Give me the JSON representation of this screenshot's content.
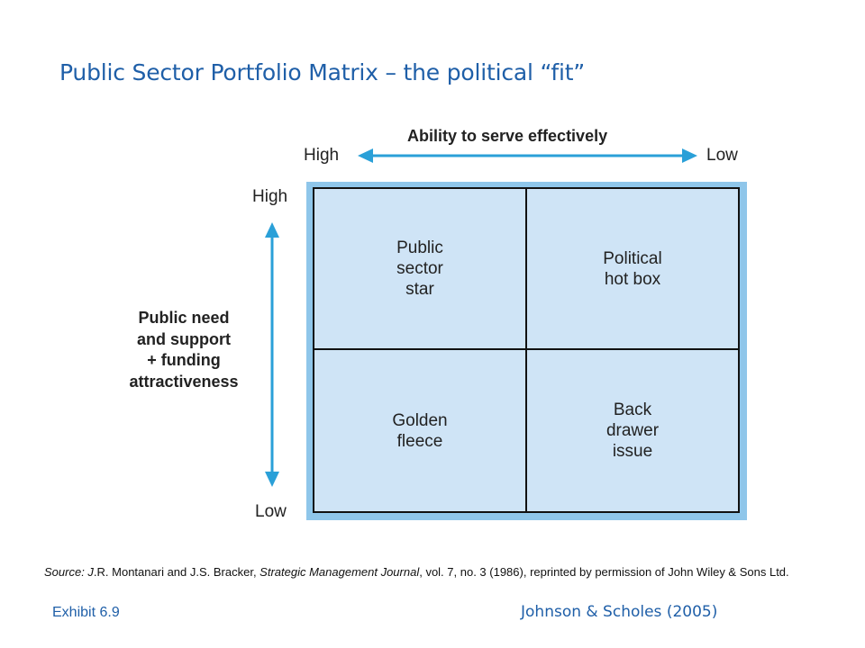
{
  "title": "Public Sector Portfolio Matrix – the political “fit”",
  "x_axis": {
    "title": "Ability to serve effectively",
    "left_label": "High",
    "right_label": "Low"
  },
  "y_axis": {
    "title_lines": [
      "Public need",
      "and support",
      "+ funding",
      "attractiveness"
    ],
    "top_label": "High",
    "bottom_label": "Low"
  },
  "quadrants": {
    "top_left": [
      "Public",
      "sector",
      "star"
    ],
    "top_right": [
      "Political",
      "hot box"
    ],
    "bottom_left": [
      "Golden",
      "fleece"
    ],
    "bottom_right": [
      "Back",
      "drawer",
      "issue"
    ]
  },
  "source": {
    "prefix": "Source: J",
    "authors": ".R. Montanari and J.S. Bracker, ",
    "journal": "Strategic Management Journal",
    "details": ", vol. 7, no. 3 (1986), reprinted by permission of John Wiley & Sons Ltd."
  },
  "exhibit": "Exhibit 6.9",
  "credit": "Johnson & Scholes (2005)",
  "colors": {
    "title": "#1f5fa8",
    "arrow": "#2aa0d8",
    "matrix_fill": "#cfe4f6",
    "matrix_shadow": "#8fc6ea"
  },
  "icons": [
    "double-headed-horizontal-arrow",
    "double-headed-vertical-arrow"
  ]
}
